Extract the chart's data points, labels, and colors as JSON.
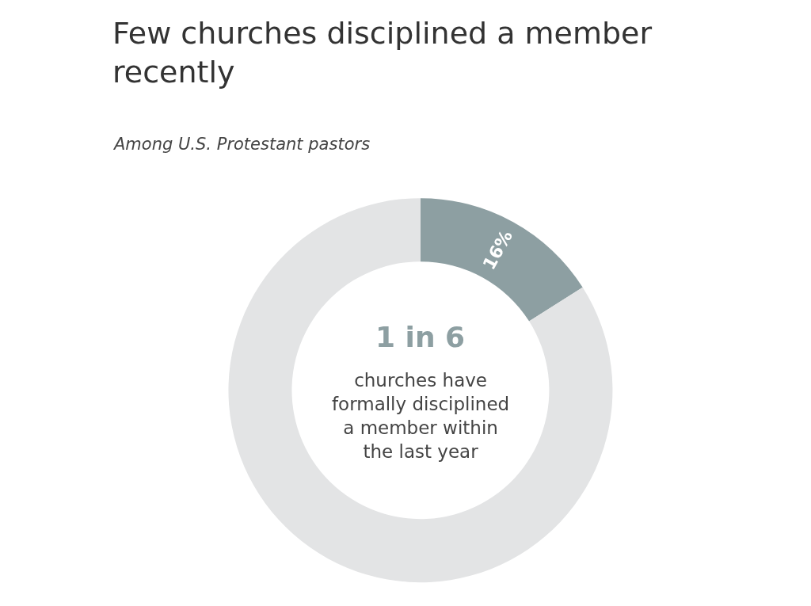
{
  "chart_data": {
    "type": "donut",
    "title": "Few churches disciplined a member\nrecently",
    "subtitle": "Among U.S. Protestant pastors",
    "categories": [
      null,
      null
    ],
    "values": [
      16,
      84
    ],
    "colors": [
      "#8d9fa2",
      "#e3e4e5"
    ],
    "value_labels": [
      "16%",
      null
    ],
    "annotations": [
      "1 in 6",
      "churches have\nformally disciplined\na member within\nthe last year"
    ],
    "legend": false
  }
}
